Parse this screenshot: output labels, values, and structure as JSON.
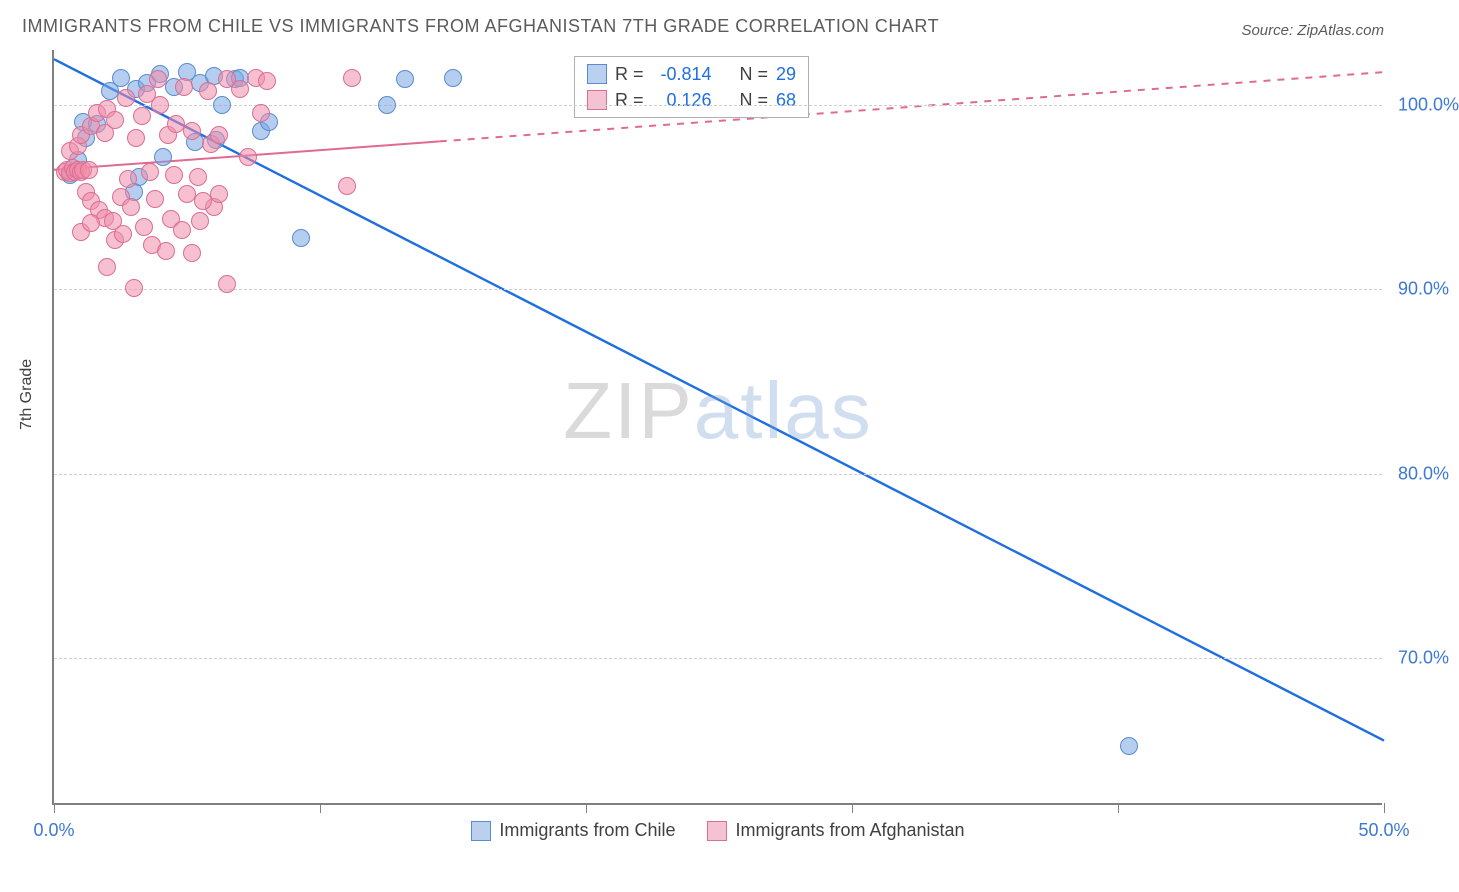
{
  "title": "IMMIGRANTS FROM CHILE VS IMMIGRANTS FROM AFGHANISTAN 7TH GRADE CORRELATION CHART",
  "source_label": "Source: ZipAtlas.com",
  "ylabel": "7th Grade",
  "watermark": {
    "part1": "ZIP",
    "part2": "atlas"
  },
  "chart": {
    "type": "scatter-correlation",
    "background_color": "#ffffff",
    "grid_color": "#d0d0d0",
    "axis_color": "#808080",
    "tick_label_color": "#3d78d6",
    "x": {
      "min": 0.0,
      "max": 50.0,
      "ticks": [
        0.0,
        10.0,
        20.0,
        30.0,
        40.0,
        50.0
      ],
      "labeled_ticks": [
        0.0,
        50.0
      ],
      "suffix": "%"
    },
    "y": {
      "min": 62.0,
      "max": 103.0,
      "ticks": [
        70.0,
        80.0,
        90.0,
        100.0
      ],
      "suffix": "%"
    },
    "series": [
      {
        "id": "chile",
        "label": "Immigrants from Chile",
        "color_fill": "rgba(120,165,225,0.55)",
        "color_stroke": "#5a8bce",
        "swatch_fill": "#b9d0ee",
        "swatch_stroke": "#5a8bce",
        "R": "-0.814",
        "N": "29",
        "marker_radius_px": 9,
        "trend": {
          "x1": 0.0,
          "y1": 102.5,
          "x2": 50.0,
          "y2": 65.5,
          "dash_from_x": null,
          "stroke_width": 2.4,
          "color": "#1f6fe0"
        },
        "points": [
          [
            0.6,
            96.2
          ],
          [
            0.9,
            97.0
          ],
          [
            1.2,
            98.2
          ],
          [
            1.1,
            99.1
          ],
          [
            1.6,
            99.0
          ],
          [
            2.1,
            100.8
          ],
          [
            2.5,
            101.5
          ],
          [
            3.1,
            100.9
          ],
          [
            3.5,
            101.2
          ],
          [
            4.0,
            101.7
          ],
          [
            4.5,
            101.0
          ],
          [
            5.0,
            101.8
          ],
          [
            5.5,
            101.2
          ],
          [
            6.0,
            101.6
          ],
          [
            6.3,
            100.0
          ],
          [
            6.8,
            101.4
          ],
          [
            3.2,
            96.1
          ],
          [
            4.1,
            97.2
          ],
          [
            5.3,
            98.0
          ],
          [
            6.1,
            98.1
          ],
          [
            7.0,
            101.5
          ],
          [
            7.8,
            98.6
          ],
          [
            8.1,
            99.1
          ],
          [
            9.3,
            92.8
          ],
          [
            12.5,
            100.0
          ],
          [
            13.2,
            101.4
          ],
          [
            15.0,
            101.5
          ],
          [
            3.0,
            95.3
          ],
          [
            40.4,
            65.2
          ]
        ]
      },
      {
        "id": "afghanistan",
        "label": "Immigrants from Afghanistan",
        "color_fill": "rgba(240,140,170,0.55)",
        "color_stroke": "#d96f93",
        "swatch_fill": "#f4c2d2",
        "swatch_stroke": "#d96f93",
        "R": "0.126",
        "N": "68",
        "marker_radius_px": 9,
        "trend": {
          "x1": 0.0,
          "y1": 96.5,
          "x2": 50.0,
          "y2": 101.8,
          "dash_from_x": 14.5,
          "stroke_width": 2.0,
          "color": "#e06a90"
        },
        "points": [
          [
            0.4,
            96.4
          ],
          [
            0.5,
            96.5
          ],
          [
            0.6,
            96.3
          ],
          [
            0.7,
            96.6
          ],
          [
            0.8,
            96.4
          ],
          [
            0.9,
            96.5
          ],
          [
            1.0,
            96.4
          ],
          [
            1.1,
            96.5
          ],
          [
            1.3,
            96.5
          ],
          [
            0.6,
            97.5
          ],
          [
            0.9,
            97.8
          ],
          [
            1.0,
            98.4
          ],
          [
            1.4,
            98.9
          ],
          [
            1.6,
            99.6
          ],
          [
            1.9,
            98.5
          ],
          [
            2.0,
            99.8
          ],
          [
            2.3,
            99.2
          ],
          [
            2.7,
            100.4
          ],
          [
            1.2,
            95.3
          ],
          [
            1.4,
            94.8
          ],
          [
            1.7,
            94.3
          ],
          [
            1.9,
            93.9
          ],
          [
            2.2,
            93.7
          ],
          [
            2.5,
            95.0
          ],
          [
            2.9,
            94.5
          ],
          [
            3.1,
            98.2
          ],
          [
            3.3,
            99.4
          ],
          [
            3.5,
            100.6
          ],
          [
            3.8,
            94.9
          ],
          [
            4.0,
            100.0
          ],
          [
            4.3,
            98.4
          ],
          [
            4.4,
            93.8
          ],
          [
            4.6,
            99.0
          ],
          [
            4.9,
            101.0
          ],
          [
            5.0,
            95.2
          ],
          [
            5.2,
            98.6
          ],
          [
            5.5,
            93.7
          ],
          [
            5.8,
            100.8
          ],
          [
            6.0,
            94.5
          ],
          [
            6.2,
            95.2
          ],
          [
            6.5,
            101.4
          ],
          [
            7.0,
            100.9
          ],
          [
            7.3,
            97.2
          ],
          [
            7.6,
            101.5
          ],
          [
            7.8,
            99.6
          ],
          [
            8.0,
            101.3
          ],
          [
            1.0,
            93.1
          ],
          [
            1.4,
            93.6
          ],
          [
            2.3,
            92.7
          ],
          [
            2.0,
            91.2
          ],
          [
            3.0,
            90.1
          ],
          [
            2.6,
            93.0
          ],
          [
            3.4,
            93.4
          ],
          [
            3.7,
            92.4
          ],
          [
            4.2,
            92.1
          ],
          [
            4.8,
            93.2
          ],
          [
            5.2,
            92.0
          ],
          [
            5.6,
            94.8
          ],
          [
            5.9,
            97.9
          ],
          [
            6.5,
            90.3
          ],
          [
            2.8,
            96.0
          ],
          [
            3.6,
            96.4
          ],
          [
            4.5,
            96.2
          ],
          [
            5.4,
            96.1
          ],
          [
            6.2,
            98.4
          ],
          [
            11.0,
            95.6
          ],
          [
            11.2,
            101.5
          ],
          [
            3.9,
            101.4
          ]
        ]
      }
    ],
    "legend_box": {
      "R_prefix": "R =",
      "N_prefix": "N =",
      "value_color": "#1f6fe0",
      "text_color": "#404040"
    }
  }
}
